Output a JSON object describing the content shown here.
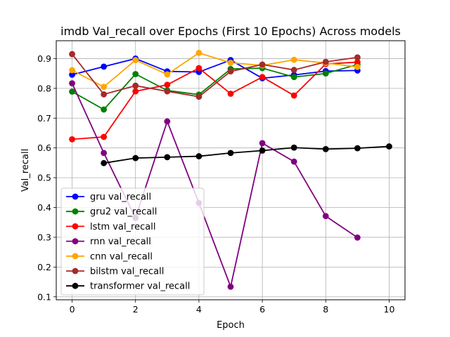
{
  "chart_data": {
    "type": "line",
    "title": "imdb Val_recall over Epochs (First 10 Epochs) Across models",
    "xlabel": "Epoch",
    "ylabel": "Val_recall",
    "xlim": [
      -0.5,
      10.5
    ],
    "ylim": [
      0.09,
      0.96
    ],
    "xticks": [
      0,
      2,
      4,
      6,
      8,
      10
    ],
    "yticks": [
      0.1,
      0.2,
      0.3,
      0.4,
      0.5,
      0.6,
      0.7,
      0.8,
      0.9
    ],
    "grid": true,
    "legend_position": "lower-left",
    "series": [
      {
        "name": "gru val_recall",
        "color": "#0000ff",
        "x": [
          0,
          1,
          2,
          3,
          4,
          5,
          6,
          7,
          8,
          9
        ],
        "values": [
          0.846,
          0.873,
          0.9,
          0.857,
          0.855,
          0.895,
          0.834,
          0.845,
          0.858,
          0.86
        ]
      },
      {
        "name": "gru2 val_recall",
        "color": "#008000",
        "x": [
          0,
          1,
          2,
          3,
          4,
          5,
          6,
          7,
          8,
          9
        ],
        "values": [
          0.789,
          0.729,
          0.848,
          0.793,
          0.779,
          0.865,
          0.868,
          0.838,
          0.85,
          0.88
        ]
      },
      {
        "name": "lstm val_recall",
        "color": "#ff0000",
        "x": [
          0,
          1,
          2,
          3,
          4,
          5,
          6,
          7,
          8,
          9
        ],
        "values": [
          0.629,
          0.637,
          0.79,
          0.812,
          0.868,
          0.782,
          0.838,
          0.776,
          0.882,
          0.888
        ]
      },
      {
        "name": "rnn val_recall",
        "color": "#800080",
        "x": [
          0,
          1,
          2,
          3,
          4,
          5,
          6,
          7,
          8,
          9
        ],
        "values": [
          0.817,
          0.583,
          0.365,
          0.689,
          0.415,
          0.134,
          0.616,
          0.554,
          0.371,
          0.299
        ]
      },
      {
        "name": "cnn val_recall",
        "color": "#ffa500",
        "x": [
          0,
          1,
          2,
          3,
          4,
          5,
          6,
          7,
          8,
          9
        ],
        "values": [
          0.861,
          0.805,
          0.895,
          0.847,
          0.919,
          0.886,
          0.877,
          0.896,
          0.885,
          0.872
        ]
      },
      {
        "name": "bilstm val_recall",
        "color": "#a52a2a",
        "x": [
          0,
          1,
          2,
          3,
          4,
          5,
          6,
          7,
          8,
          9
        ],
        "values": [
          0.915,
          0.78,
          0.809,
          0.79,
          0.772,
          0.857,
          0.88,
          0.862,
          0.889,
          0.904
        ]
      },
      {
        "name": "transformer val_recall",
        "color": "#000000",
        "x": [
          1,
          2,
          3,
          4,
          5,
          6,
          7,
          8,
          9,
          10
        ],
        "values": [
          0.549,
          0.566,
          0.569,
          0.572,
          0.583,
          0.591,
          0.601,
          0.596,
          0.599,
          0.605
        ]
      }
    ]
  }
}
